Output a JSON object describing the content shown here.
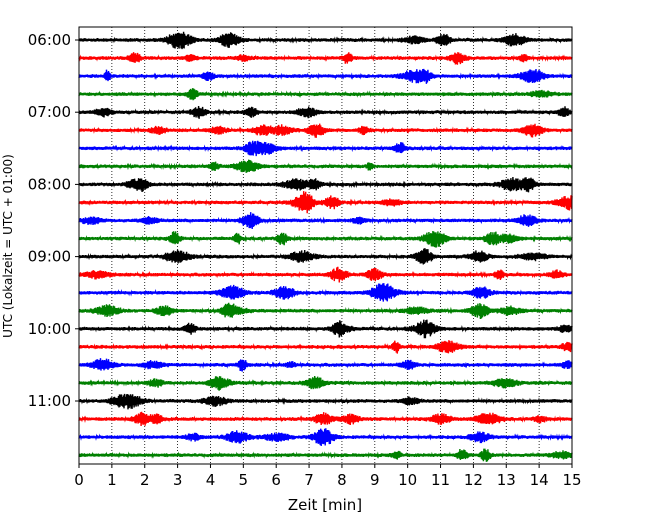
{
  "chart_data": {
    "type": "line",
    "xlabel": "Zeit  [min]",
    "ylabel": "UTC (Lokalzeit = UTC + 01:00)",
    "xlim": [
      0,
      15
    ],
    "x_ticks": [
      "0",
      "1",
      "2",
      "3",
      "4",
      "5",
      "6",
      "7",
      "8",
      "9",
      "10",
      "11",
      "12",
      "13",
      "14",
      "15"
    ],
    "y_ticks": [
      "06:00",
      "07:00",
      "08:00",
      "09:00",
      "10:00",
      "11:00"
    ],
    "grid": "vertical dotted lines at each minute",
    "trace_colors": [
      "#000000",
      "#ff0000",
      "#0000ff",
      "#008000"
    ],
    "traces": [
      {
        "start": "06:00",
        "color": "#000000"
      },
      {
        "start": "06:15",
        "color": "#ff0000"
      },
      {
        "start": "06:30",
        "color": "#0000ff"
      },
      {
        "start": "06:45",
        "color": "#008000"
      },
      {
        "start": "07:00",
        "color": "#000000"
      },
      {
        "start": "07:15",
        "color": "#ff0000"
      },
      {
        "start": "07:30",
        "color": "#0000ff"
      },
      {
        "start": "07:45",
        "color": "#008000"
      },
      {
        "start": "08:00",
        "color": "#000000"
      },
      {
        "start": "08:15",
        "color": "#ff0000"
      },
      {
        "start": "08:30",
        "color": "#0000ff"
      },
      {
        "start": "08:45",
        "color": "#008000"
      },
      {
        "start": "09:00",
        "color": "#000000"
      },
      {
        "start": "09:15",
        "color": "#ff0000"
      },
      {
        "start": "09:30",
        "color": "#0000ff"
      },
      {
        "start": "09:45",
        "color": "#008000"
      },
      {
        "start": "10:00",
        "color": "#000000"
      },
      {
        "start": "10:15",
        "color": "#ff0000"
      },
      {
        "start": "10:30",
        "color": "#0000ff"
      },
      {
        "start": "10:45",
        "color": "#008000"
      },
      {
        "start": "11:00",
        "color": "#000000"
      },
      {
        "start": "11:15",
        "color": "#ff0000"
      },
      {
        "start": "11:30",
        "color": "#0000ff"
      },
      {
        "start": "11:45",
        "color": "#008000"
      }
    ]
  }
}
